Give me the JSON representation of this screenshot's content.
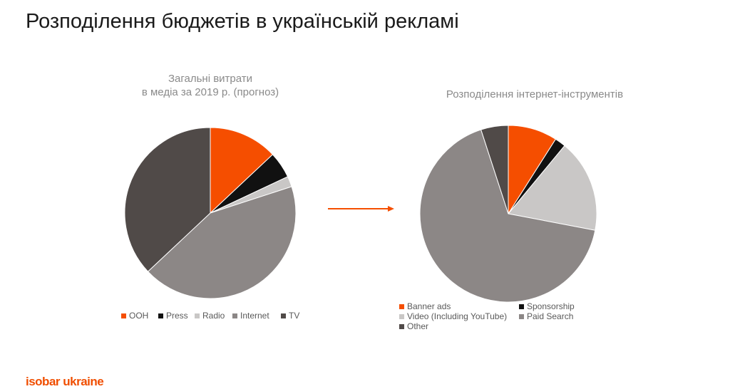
{
  "page_title": "Розподілення бюджетів в українській рекламі",
  "logo_text": "isobar ukraine",
  "colors": {
    "orange": "#F54E00",
    "black": "#111111",
    "light_gray": "#C9C7C6",
    "mid_gray": "#8C8786",
    "dark_gray": "#504A48"
  },
  "chart_data": [
    {
      "type": "pie",
      "title": "Загальні витрати\nв медіа за 2019 р. (прогноз)",
      "title_lines": [
        "Загальні витрати",
        "в медіа за 2019 р. (прогноз)"
      ],
      "legend_position": "bottom",
      "slices": [
        {
          "label": "OOH",
          "value": 13,
          "color": "#F54E00"
        },
        {
          "label": "Press",
          "value": 5,
          "color": "#111111"
        },
        {
          "label": "Radio",
          "value": 2,
          "color": "#C9C7C6"
        },
        {
          "label": "Internet",
          "value": 43,
          "color": "#8C8786"
        },
        {
          "label": "TV",
          "value": 37,
          "color": "#504A48"
        }
      ]
    },
    {
      "type": "pie",
      "title": "Розподілення інтернет-інструментів",
      "legend_position": "bottom",
      "slices": [
        {
          "label": "Banner ads",
          "value": 9,
          "color": "#F54E00"
        },
        {
          "label": "Sponsorship",
          "value": 2,
          "color": "#111111"
        },
        {
          "label": "Video (Including YouTube)",
          "value": 17,
          "color": "#C9C7C6"
        },
        {
          "label": "Paid Search",
          "value": 67,
          "color": "#8C8786"
        },
        {
          "label": "Other",
          "value": 5,
          "color": "#504A48"
        }
      ]
    }
  ]
}
